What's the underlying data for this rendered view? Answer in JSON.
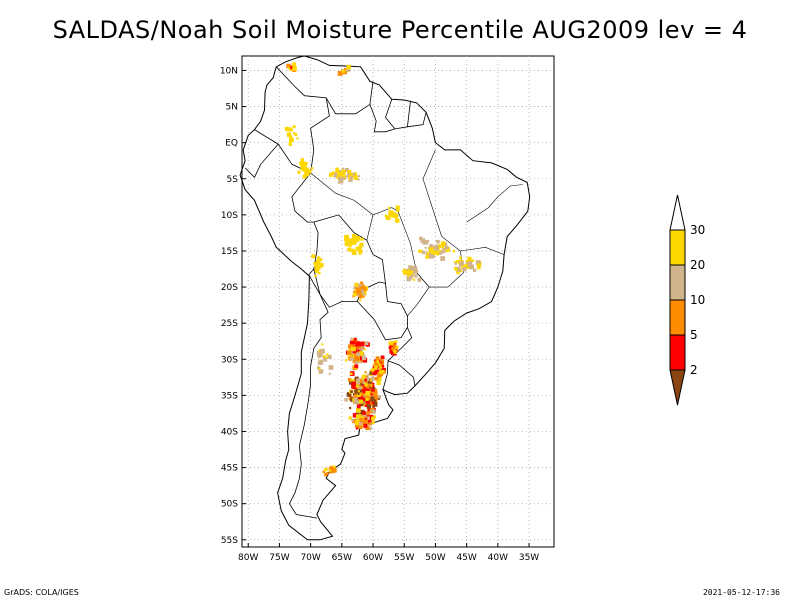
{
  "title": "SALDAS/Noah Soil Moisture Percentile AUG2009 lev = 4",
  "footer": {
    "left": "GrADS: COLA/IGES",
    "right": "2021-05-12-17:36"
  },
  "axes": {
    "lat_labels": [
      "10N",
      "5N",
      "EQ",
      "5S",
      "10S",
      "15S",
      "20S",
      "25S",
      "30S",
      "35S",
      "40S",
      "45S",
      "50S",
      "55S"
    ],
    "lon_labels": [
      "80W",
      "75W",
      "70W",
      "65W",
      "60W",
      "55W",
      "50W",
      "45W",
      "40W",
      "35W"
    ]
  },
  "chart_data": {
    "type": "heatmap",
    "title": "SALDAS/Noah Soil Moisture Percentile AUG2009 lev = 4",
    "region": "South America",
    "lon_range": [
      -81,
      -31
    ],
    "lat_range": [
      -56,
      12
    ],
    "grid": "dotted",
    "colorbar": {
      "placement": "right",
      "levels": [
        "2",
        "5",
        "10",
        "20",
        "30"
      ],
      "colors": [
        "#8b4513",
        "#ff0000",
        "#ff8c00",
        "#d2b48c",
        "#ffd700",
        "#ffffff"
      ]
    },
    "colors": {
      "lt2": "#8b4513",
      "2_5": "#ff0000",
      "5_10": "#ff8c00",
      "10_20": "#d2b48c",
      "20_30": "#ffd700",
      "gt30": "#ffffff"
    }
  }
}
